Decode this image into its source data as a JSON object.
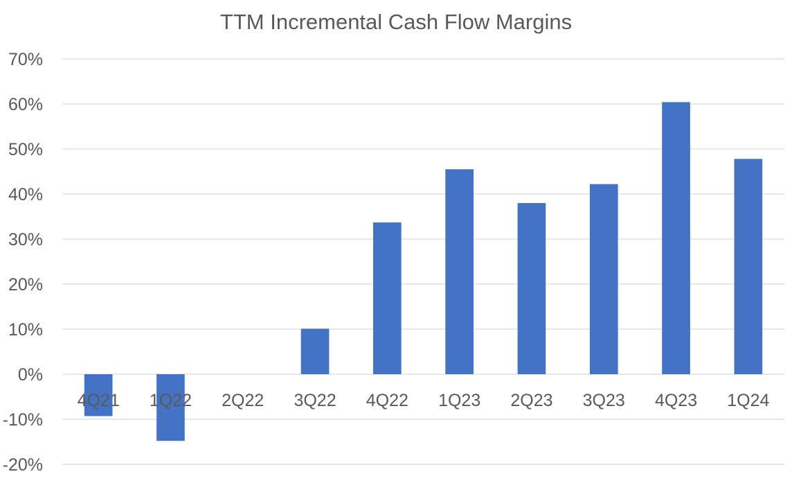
{
  "chart_data": {
    "type": "bar",
    "title": "TTM Incremental Cash Flow Margins",
    "xlabel": "",
    "ylabel": "",
    "categories": [
      "4Q21",
      "1Q22",
      "2Q22",
      "3Q22",
      "4Q22",
      "1Q23",
      "2Q23",
      "3Q23",
      "4Q23",
      "1Q24"
    ],
    "values": [
      -9.3,
      -14.8,
      0.0,
      10.1,
      33.7,
      45.5,
      38.0,
      42.2,
      60.4,
      47.8
    ],
    "ylim": [
      -20,
      70
    ],
    "yticks": [
      -20,
      -10,
      0,
      10,
      20,
      30,
      40,
      50,
      60,
      70
    ],
    "ytick_labels": [
      "-20%",
      "-10%",
      "0%",
      "10%",
      "20%",
      "30%",
      "40%",
      "50%",
      "60%",
      "70%"
    ],
    "grid": true,
    "legend": "none",
    "bar_color": "#4472c4"
  }
}
